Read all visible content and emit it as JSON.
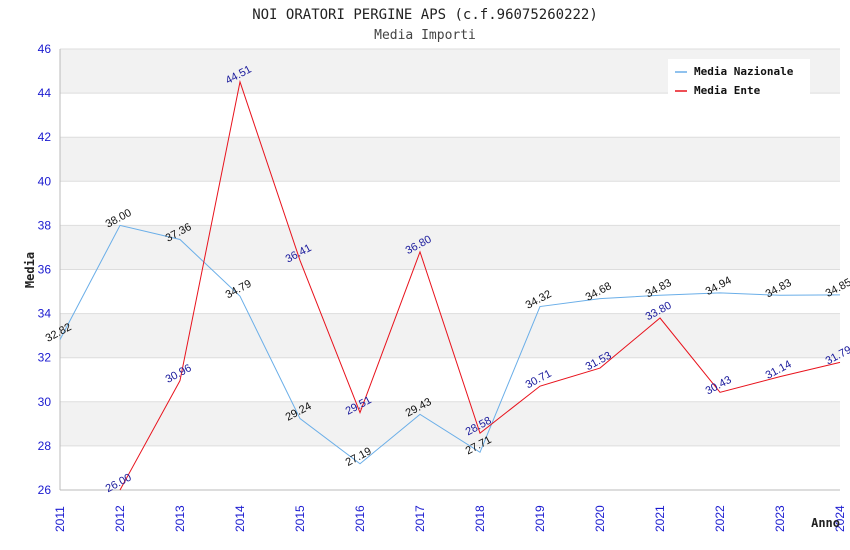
{
  "chart_data": {
    "type": "line",
    "title": "NOI ORATORI PERGINE APS (c.f.96075260222)",
    "subtitle": "Media Importi",
    "xlabel": "Anno",
    "ylabel": "Media",
    "ylim": [
      26,
      46
    ],
    "yticks": [
      "26",
      "28",
      "30",
      "32",
      "34",
      "36",
      "38",
      "40",
      "42",
      "44",
      "46"
    ],
    "grid": true,
    "legend_position": "top-right",
    "categories": [
      "2011",
      "2012",
      "2013",
      "2014",
      "2015",
      "2016",
      "2017",
      "2018",
      "2019",
      "2020",
      "2021",
      "2022",
      "2023",
      "2024"
    ],
    "series": [
      {
        "name": "Media Nazionale",
        "color": "#6aaee8",
        "label_color": "#111111",
        "values": [
          32.82,
          38.0,
          37.36,
          34.79,
          29.24,
          27.19,
          29.43,
          27.71,
          34.32,
          34.68,
          34.83,
          34.94,
          34.83,
          34.85
        ],
        "labels": [
          "32.82",
          "38.00",
          "37.36",
          "34.79",
          "29.24",
          "27.19",
          "29.43",
          "27.71",
          "34.32",
          "34.68",
          "34.83",
          "34.94",
          "34.83",
          "34.85"
        ]
      },
      {
        "name": "Media Ente",
        "color": "#e8121c",
        "label_color": "#1a1a9c",
        "values": [
          null,
          26.0,
          30.96,
          44.51,
          36.41,
          29.51,
          36.8,
          28.58,
          30.71,
          31.53,
          33.8,
          30.43,
          31.14,
          31.79
        ],
        "labels": [
          "",
          "26.00",
          "30.96",
          "44.51",
          "36.41",
          "29.51",
          "36.80",
          "28.58",
          "30.71",
          "31.53",
          "33.80",
          "30.43",
          "31.14",
          "31.79"
        ]
      }
    ],
    "colors": {
      "tick_text": "#1a1ad0",
      "band": "#f2f2f2",
      "gridline": "#dddddd",
      "axis": "#bbbbbb"
    }
  }
}
